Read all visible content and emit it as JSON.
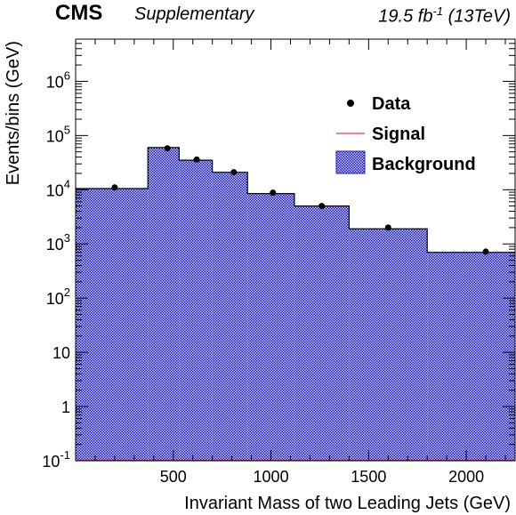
{
  "header": {
    "experiment": "CMS",
    "tag": "Supplementary",
    "lumi_value": "19.5 fb",
    "lumi_exp": "-1",
    "energy": "(13TeV)"
  },
  "chart_data": {
    "type": "bar",
    "xlabel": "Invariant Mass of two Leading Jets (GeV)",
    "ylabel": "Events/bins (GeV)",
    "xlim": [
      0,
      2250
    ],
    "ylim": [
      0.1,
      6000000
    ],
    "log_y": true,
    "x_ticks": [
      500,
      1000,
      1500,
      2000
    ],
    "y_ticks": [
      {
        "value": 0.1,
        "base": "10",
        "exp": "-1"
      },
      {
        "value": 1,
        "base": "1",
        "exp": ""
      },
      {
        "value": 10,
        "base": "10",
        "exp": ""
      },
      {
        "value": 100,
        "base": "10",
        "exp": "2"
      },
      {
        "value": 1000,
        "base": "10",
        "exp": "3"
      },
      {
        "value": 10000,
        "base": "10",
        "exp": "4"
      },
      {
        "value": 100000,
        "base": "10",
        "exp": "5"
      },
      {
        "value": 1000000,
        "base": "10",
        "exp": "6"
      }
    ],
    "bin_edges": [
      0,
      370,
      530,
      700,
      880,
      1120,
      1400,
      1800,
      2250
    ],
    "series": [
      {
        "name": "Data",
        "style": "points",
        "color": "#000000",
        "x": [
          200,
          470,
          620,
          810,
          1010,
          1260,
          1600,
          2100
        ],
        "values": [
          11000,
          58000,
          36000,
          21000,
          8800,
          5000,
          2000,
          720
        ]
      },
      {
        "name": "Signal",
        "style": "line",
        "color": "#ff0000",
        "values": [
          0,
          0,
          0,
          0,
          0,
          0,
          0,
          0
        ]
      },
      {
        "name": "Background",
        "style": "hatched",
        "color": "#1b1bd6",
        "values": [
          10500,
          60000,
          35000,
          21000,
          8500,
          5000,
          1900,
          700
        ]
      }
    ],
    "legend": {
      "position": "top-right"
    }
  }
}
